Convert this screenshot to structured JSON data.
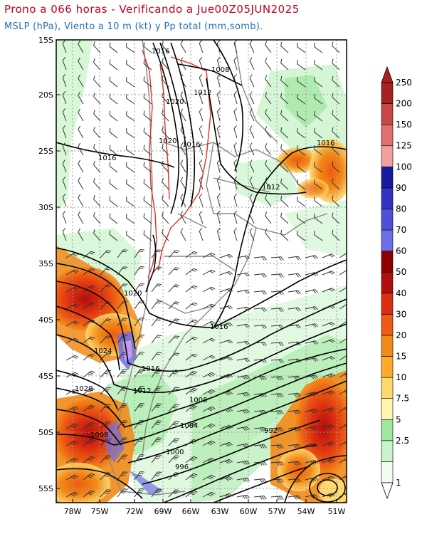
{
  "header": {
    "title": "Prono a 066 horas - Verificando a Jue00Z05JUN2025",
    "subtitle": "MSLP (hPa), Viento a 10 m (kt) y Pp total (mm,somb)."
  },
  "map": {
    "lat_labels": [
      "15S",
      "20S",
      "25S",
      "30S",
      "35S",
      "40S",
      "45S",
      "50S",
      "55S"
    ],
    "lon_labels": [
      "78W",
      "75W",
      "72W",
      "69W",
      "66W",
      "63W",
      "60W",
      "57W",
      "54W",
      "51W"
    ],
    "isobar_labels": [
      "1016",
      "1008",
      "1012",
      "1020",
      "1020",
      "1016",
      "1016",
      "1016",
      "1012",
      "1020",
      "1016",
      "1024",
      "1016",
      "1012",
      "1020",
      "1008",
      "1008",
      "1004",
      "992",
      "1000",
      "996"
    ]
  },
  "colorbar": {
    "levels": [
      "1",
      "2.5",
      "5",
      "7.5",
      "10",
      "15",
      "20",
      "30",
      "40",
      "50",
      "60",
      "70",
      "80",
      "90",
      "100",
      "125",
      "150",
      "200",
      "250"
    ],
    "colors": [
      "#f2fdf2",
      "#c9f4c9",
      "#9fe79f",
      "#fff4b0",
      "#ffd870",
      "#ffaa2a",
      "#f28a17",
      "#ee5b12",
      "#db2e10",
      "#b10e0e",
      "#8f0000",
      "#6f6fe8",
      "#4f4fd8",
      "#3333c0",
      "#1a1aa0",
      "#f0a0a0",
      "#e07070",
      "#c84848",
      "#a82020"
    ]
  },
  "colors": {
    "title": "#c0001a",
    "subtitle": "#1e6fbf",
    "isobar": "#000000",
    "borders": "#808080",
    "terrain_contour": "#e03030"
  }
}
